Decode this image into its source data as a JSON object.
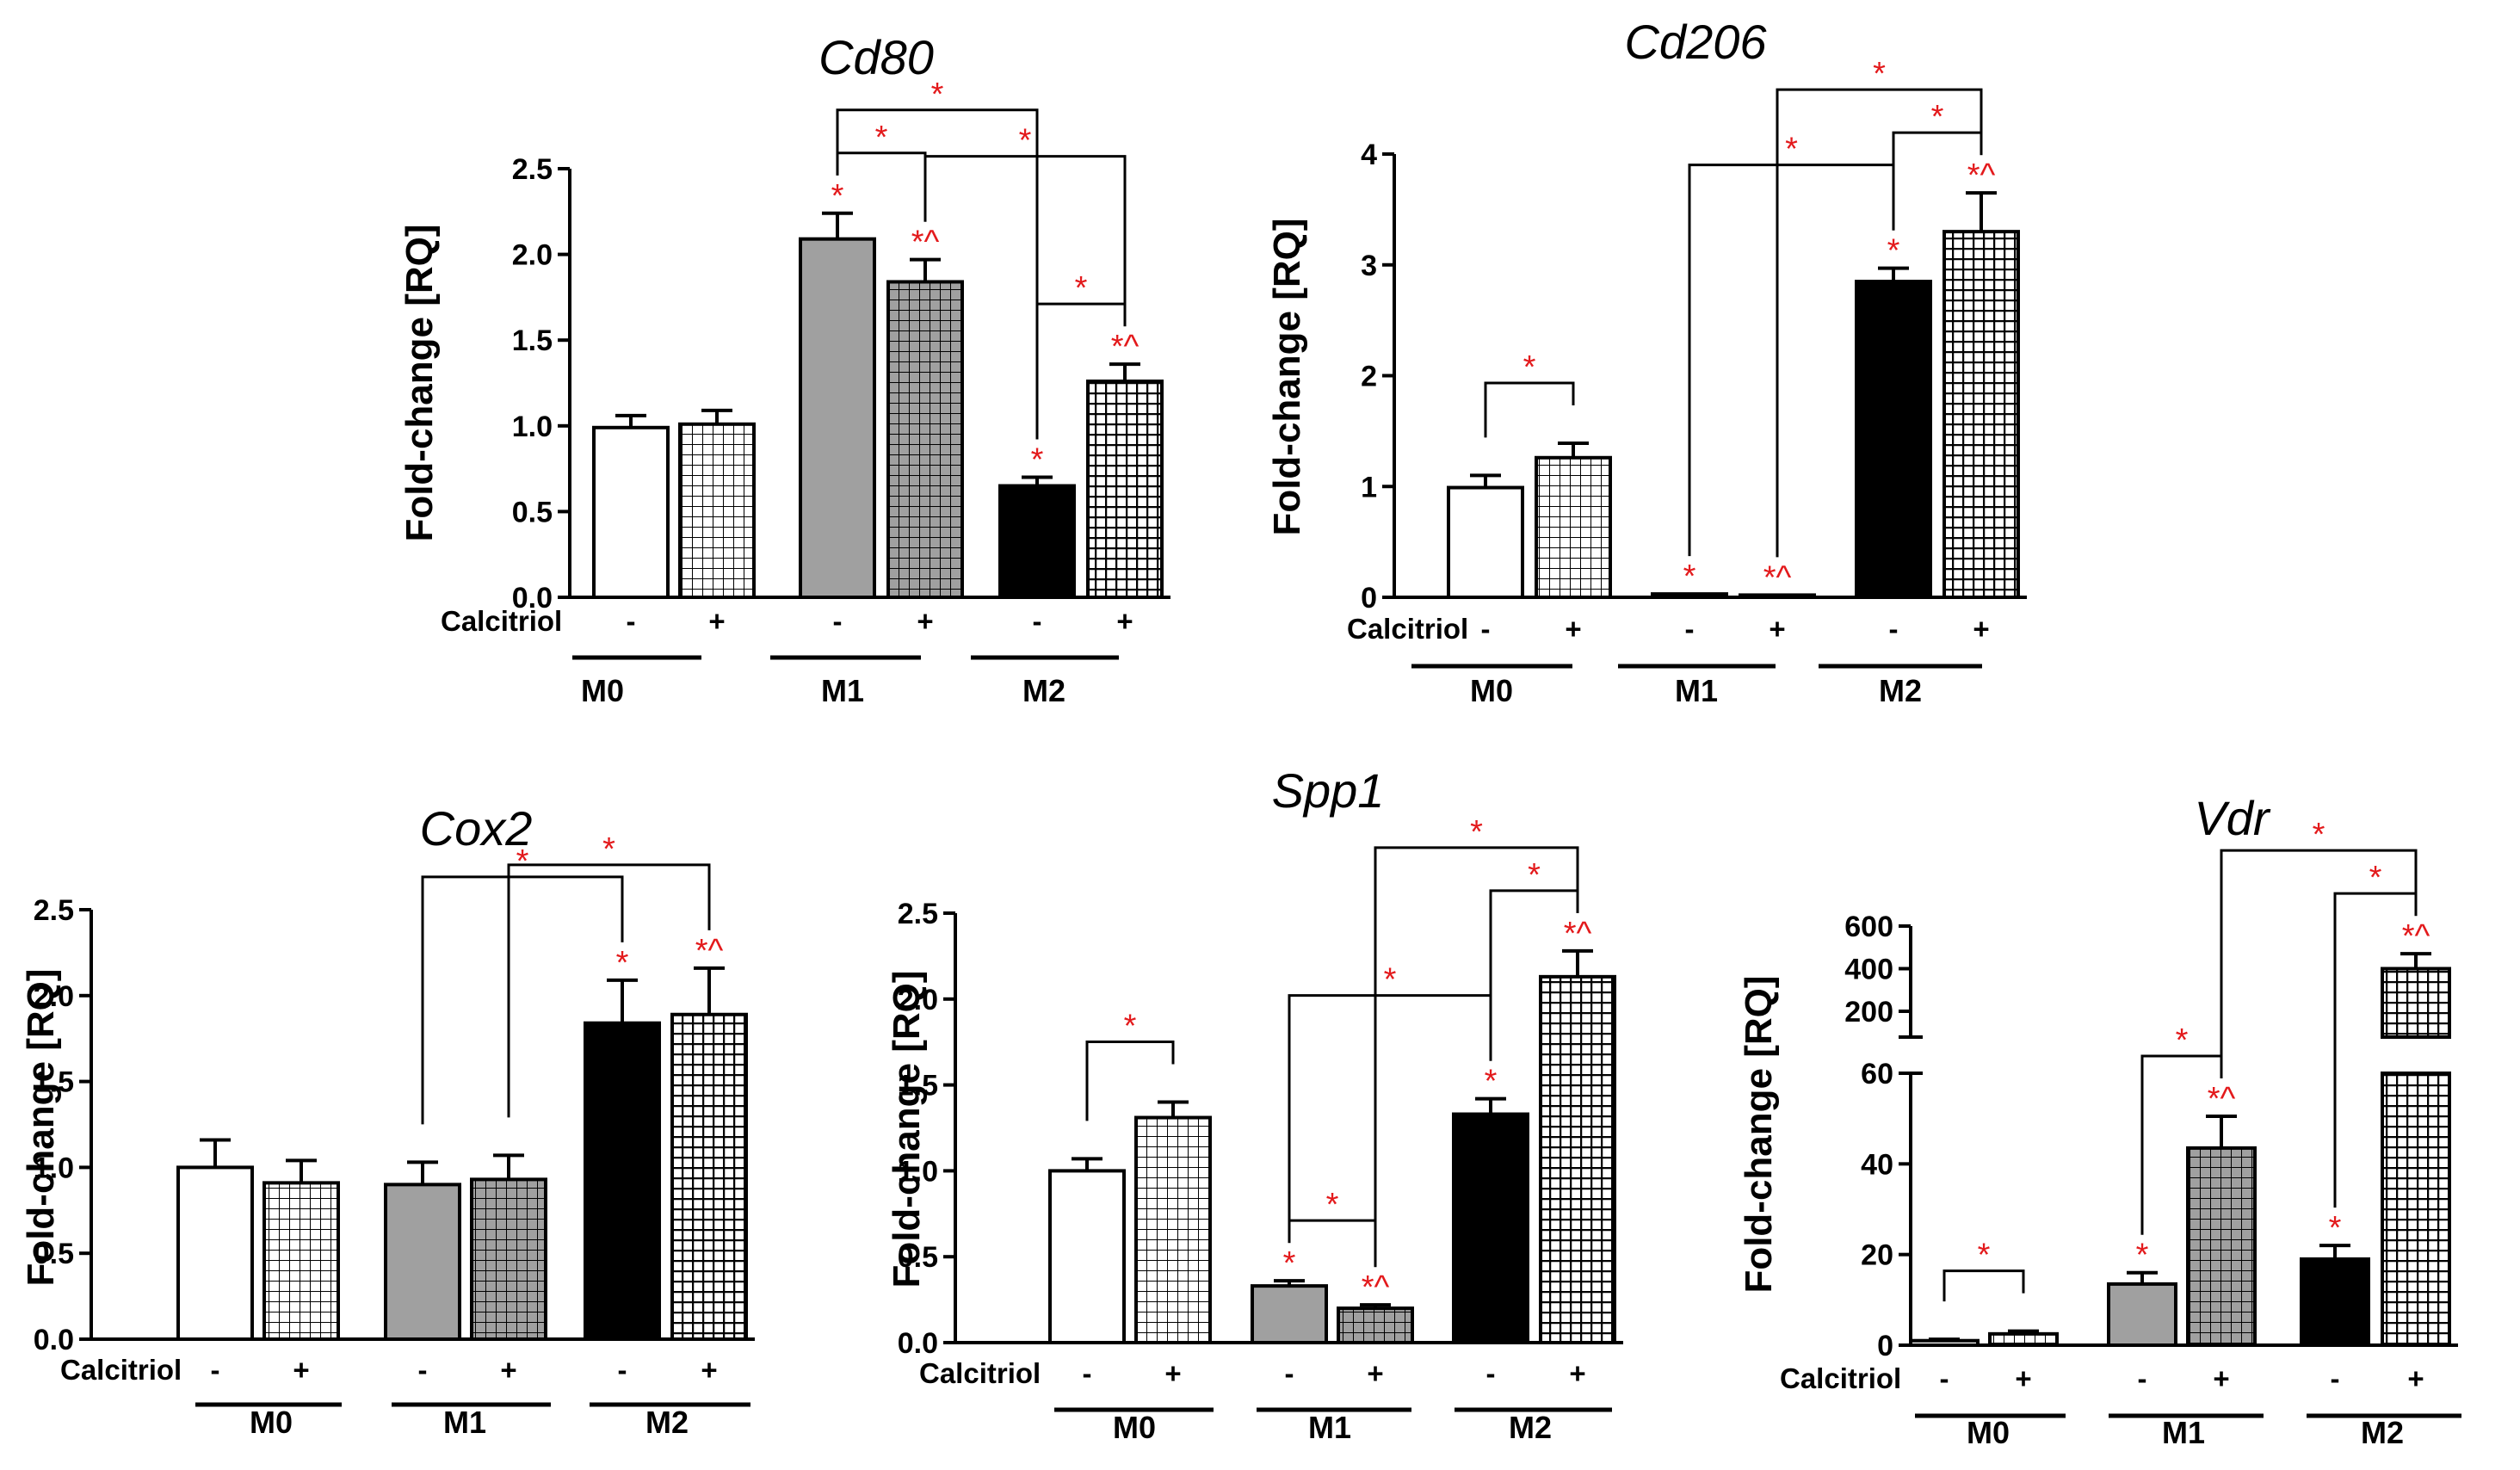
{
  "chart_data": [
    {
      "type": "bar",
      "id": "cd80",
      "title": "Cd80",
      "ylabel": "Fold-change [RQ]",
      "ylim": [
        0,
        2.5
      ],
      "yticks": [
        "0.0",
        "0.5",
        "1.0",
        "1.5",
        "2.0",
        "2.5"
      ],
      "calcitriol_label": "Calcitriol",
      "groups": [
        "M0",
        "M1",
        "M2"
      ],
      "bars": [
        {
          "group": "M0",
          "calcitriol": "-",
          "value": 0.99,
          "err": 0.07,
          "fill": "white",
          "ann": ""
        },
        {
          "group": "M0",
          "calcitriol": "+",
          "value": 1.01,
          "err": 0.08,
          "fill": "white-grid",
          "ann": ""
        },
        {
          "group": "M1",
          "calcitriol": "-",
          "value": 2.09,
          "err": 0.15,
          "fill": "gray",
          "ann": "*"
        },
        {
          "group": "M1",
          "calcitriol": "+",
          "value": 1.84,
          "err": 0.13,
          "fill": "gray-grid",
          "ann": "*^"
        },
        {
          "group": "M2",
          "calcitriol": "-",
          "value": 0.65,
          "err": 0.05,
          "fill": "black",
          "ann": "*"
        },
        {
          "group": "M2",
          "calcitriol": "+",
          "value": 1.26,
          "err": 0.1,
          "fill": "black-grid",
          "ann": "*^"
        }
      ],
      "brackets": [
        {
          "from": 2,
          "to": 4,
          "label": "*"
        },
        {
          "from": 2,
          "to": 3,
          "label": "*"
        },
        {
          "from": 3,
          "to": 5,
          "label": "*"
        },
        {
          "from": 4,
          "to": 5,
          "label": "*"
        }
      ]
    },
    {
      "type": "bar",
      "id": "cd206",
      "title": "Cd206",
      "ylabel": "Fold-change [RQ]",
      "ylim": [
        0,
        4
      ],
      "yticks": [
        "0",
        "1",
        "2",
        "3",
        "4"
      ],
      "calcitriol_label": "Calcitriol",
      "groups": [
        "M0",
        "M1",
        "M2"
      ],
      "bars": [
        {
          "group": "M0",
          "calcitriol": "-",
          "value": 0.99,
          "err": 0.11,
          "fill": "white",
          "ann": ""
        },
        {
          "group": "M0",
          "calcitriol": "+",
          "value": 1.26,
          "err": 0.13,
          "fill": "white-grid",
          "ann": ""
        },
        {
          "group": "M1",
          "calcitriol": "-",
          "value": 0.03,
          "err": 0.0,
          "fill": "gray",
          "ann": "*"
        },
        {
          "group": "M1",
          "calcitriol": "+",
          "value": 0.02,
          "err": 0.0,
          "fill": "gray-grid",
          "ann": "*^"
        },
        {
          "group": "M2",
          "calcitriol": "-",
          "value": 2.85,
          "err": 0.12,
          "fill": "black",
          "ann": "*"
        },
        {
          "group": "M2",
          "calcitriol": "+",
          "value": 3.3,
          "err": 0.35,
          "fill": "black-grid",
          "ann": "*^"
        }
      ],
      "brackets": [
        {
          "from": 0,
          "to": 1,
          "label": "*"
        },
        {
          "from": 2,
          "to": 4,
          "label": "*"
        },
        {
          "from": 3,
          "to": 5,
          "label": "*"
        },
        {
          "from": 4,
          "to": 5,
          "label": "*"
        }
      ]
    },
    {
      "type": "bar",
      "id": "cox2",
      "title": "Cox2",
      "ylabel": "Fold-change [RQ]",
      "ylim": [
        0,
        2.5
      ],
      "yticks": [
        "0.0",
        "0.5",
        "1.0",
        "1.5",
        "2.0",
        "2.5"
      ],
      "calcitriol_label": "Calcitriol",
      "groups": [
        "M0",
        "M1",
        "M2"
      ],
      "bars": [
        {
          "group": "M0",
          "calcitriol": "-",
          "value": 1.0,
          "err": 0.16,
          "fill": "white",
          "ann": ""
        },
        {
          "group": "M0",
          "calcitriol": "+",
          "value": 0.91,
          "err": 0.13,
          "fill": "white-grid",
          "ann": ""
        },
        {
          "group": "M1",
          "calcitriol": "-",
          "value": 0.9,
          "err": 0.13,
          "fill": "gray",
          "ann": ""
        },
        {
          "group": "M1",
          "calcitriol": "+",
          "value": 0.93,
          "err": 0.14,
          "fill": "gray-grid",
          "ann": ""
        },
        {
          "group": "M2",
          "calcitriol": "-",
          "value": 1.84,
          "err": 0.25,
          "fill": "black",
          "ann": "*"
        },
        {
          "group": "M2",
          "calcitriol": "+",
          "value": 1.89,
          "err": 0.27,
          "fill": "black-grid",
          "ann": "*^"
        }
      ],
      "brackets": [
        {
          "from": 2,
          "to": 4,
          "label": "*"
        },
        {
          "from": 3,
          "to": 5,
          "label": "*"
        }
      ]
    },
    {
      "type": "bar",
      "id": "spp1",
      "title": "Spp1",
      "ylabel": "Fold-change [RQ]",
      "ylim": [
        0,
        2.5
      ],
      "yticks": [
        "0.0",
        "0.5",
        "1.0",
        "1.5",
        "2.0",
        "2.5"
      ],
      "calcitriol_label": "Calcitriol",
      "groups": [
        "M0",
        "M1",
        "M2"
      ],
      "bars": [
        {
          "group": "M0",
          "calcitriol": "-",
          "value": 1.0,
          "err": 0.07,
          "fill": "white",
          "ann": ""
        },
        {
          "group": "M0",
          "calcitriol": "+",
          "value": 1.31,
          "err": 0.09,
          "fill": "white-grid",
          "ann": ""
        },
        {
          "group": "M1",
          "calcitriol": "-",
          "value": 0.33,
          "err": 0.03,
          "fill": "gray",
          "ann": "*"
        },
        {
          "group": "M1",
          "calcitriol": "+",
          "value": 0.2,
          "err": 0.02,
          "fill": "gray-grid",
          "ann": "*^"
        },
        {
          "group": "M2",
          "calcitriol": "-",
          "value": 1.33,
          "err": 0.09,
          "fill": "black",
          "ann": "*"
        },
        {
          "group": "M2",
          "calcitriol": "+",
          "value": 2.13,
          "err": 0.15,
          "fill": "black-grid",
          "ann": "*^"
        }
      ],
      "brackets": [
        {
          "from": 0,
          "to": 1,
          "label": "*"
        },
        {
          "from": 2,
          "to": 3,
          "label": "*"
        },
        {
          "from": 2,
          "to": 4,
          "label": "*"
        },
        {
          "from": 3,
          "to": 5,
          "label": "*"
        },
        {
          "from": 4,
          "to": 5,
          "label": "*"
        }
      ]
    },
    {
      "type": "bar",
      "id": "vdr",
      "title": "Vdr",
      "ylabel": "Fold-change [RQ]",
      "axis_break": {
        "lower": [
          0,
          60
        ],
        "upper": [
          60,
          600
        ]
      },
      "yticks": [
        "0",
        "20",
        "40",
        "60",
        "200",
        "400",
        "600"
      ],
      "calcitriol_label": "Calcitriol",
      "groups": [
        "M0",
        "M1",
        "M2"
      ],
      "bars": [
        {
          "group": "M0",
          "calcitriol": "-",
          "value": 1.0,
          "err": 0.3,
          "fill": "white",
          "ann": ""
        },
        {
          "group": "M0",
          "calcitriol": "+",
          "value": 2.5,
          "err": 0.6,
          "fill": "white-grid",
          "ann": ""
        },
        {
          "group": "M1",
          "calcitriol": "-",
          "value": 13.5,
          "err": 2.5,
          "fill": "gray",
          "ann": "*"
        },
        {
          "group": "M1",
          "calcitriol": "+",
          "value": 43.5,
          "err": 7.0,
          "fill": "gray-grid",
          "ann": "*^"
        },
        {
          "group": "M2",
          "calcitriol": "-",
          "value": 19.0,
          "err": 3.0,
          "fill": "black",
          "ann": "*"
        },
        {
          "group": "M2",
          "calcitriol": "+",
          "value": 400,
          "err": 70,
          "fill": "black-grid",
          "ann": "*^"
        }
      ],
      "brackets": [
        {
          "from": 0,
          "to": 1,
          "label": "*"
        },
        {
          "from": 2,
          "to": 3,
          "label": "*"
        },
        {
          "from": 3,
          "to": 5,
          "label": "*"
        },
        {
          "from": 4,
          "to": 5,
          "label": "*"
        }
      ]
    }
  ]
}
